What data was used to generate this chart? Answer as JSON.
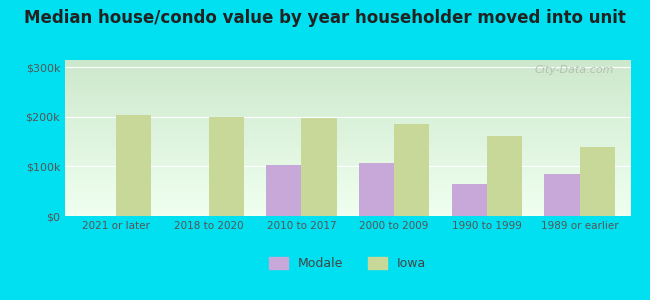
{
  "title": "Median house/condo value by year householder moved into unit",
  "categories": [
    "2021 or later",
    "2018 to 2020",
    "2010 to 2017",
    "2000 to 2009",
    "1990 to 1999",
    "1989 or earlier"
  ],
  "modale_values": [
    null,
    null,
    102000,
    107000,
    65000,
    84000
  ],
  "iowa_values": [
    203000,
    200000,
    197000,
    185000,
    162000,
    140000
  ],
  "modale_color": "#c8a8d8",
  "iowa_color": "#c8d898",
  "background_outer": "#00e0f0",
  "yticks": [
    0,
    100000,
    200000,
    300000
  ],
  "ylim": [
    0,
    315000
  ],
  "bar_width": 0.38,
  "title_fontsize": 12,
  "legend_labels": [
    "Modale",
    "Iowa"
  ],
  "watermark": "City-Data.com"
}
